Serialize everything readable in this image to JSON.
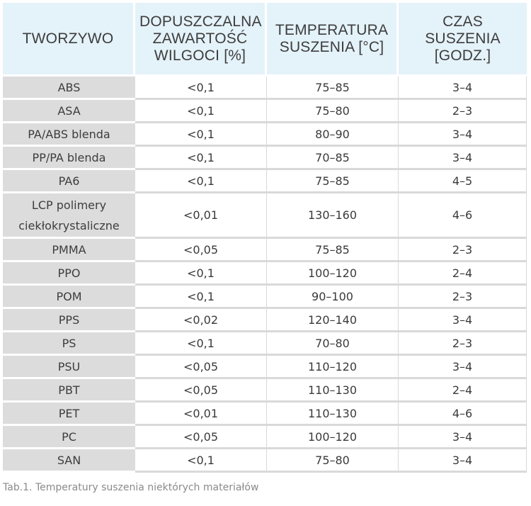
{
  "table": {
    "headers": [
      "TWORZYWO",
      "DOPUSZCZALNA ZAWARTOŚĆ WILGOCI [%]",
      "TEMPERATURA SUSZENIA [°C]",
      "CZAS SUSZENIA [GODZ.]"
    ],
    "rows": [
      [
        "ABS",
        "<0,1",
        "75–85",
        "3–4"
      ],
      [
        "ASA",
        "<0,1",
        "75–80",
        "2–3"
      ],
      [
        "PA/ABS blenda",
        "<0,1",
        "80–90",
        "3–4"
      ],
      [
        "PP/PA blenda",
        "<0,1",
        "70–85",
        "3–4"
      ],
      [
        "PA6",
        "<0,1",
        "75–85",
        "4–5"
      ],
      [
        "LCP polimery ciekłokrystaliczne",
        "<0,01",
        "130–160",
        "4–6"
      ],
      [
        "PMMA",
        "<0,05",
        "75–85",
        "2–3"
      ],
      [
        "PPO",
        "<0,1",
        "100–120",
        "2–4"
      ],
      [
        "POM",
        "<0,1",
        "90–100",
        "2–3"
      ],
      [
        "PPS",
        "<0,02",
        "120–140",
        "3–4"
      ],
      [
        "PS",
        "<0,1",
        "70–80",
        "2–3"
      ],
      [
        "PSU",
        "<0,05",
        "110–120",
        "3–4"
      ],
      [
        "PBT",
        "<0,05",
        "110–130",
        "2–4"
      ],
      [
        "PET",
        "<0,01",
        "110–130",
        "4–6"
      ],
      [
        "PC",
        "<0,05",
        "100–120",
        "3–4"
      ],
      [
        "SAN",
        "<0,1",
        "75–80",
        "3–4"
      ]
    ]
  },
  "caption": "Tab.1. Temperatury suszenia niektórych materiałów",
  "colors": {
    "header_bg": "#e4f2f9",
    "first_col_bg": "#dcdcdc",
    "grid": "#d9d9d9",
    "caption_text": "#8a8a8a"
  }
}
